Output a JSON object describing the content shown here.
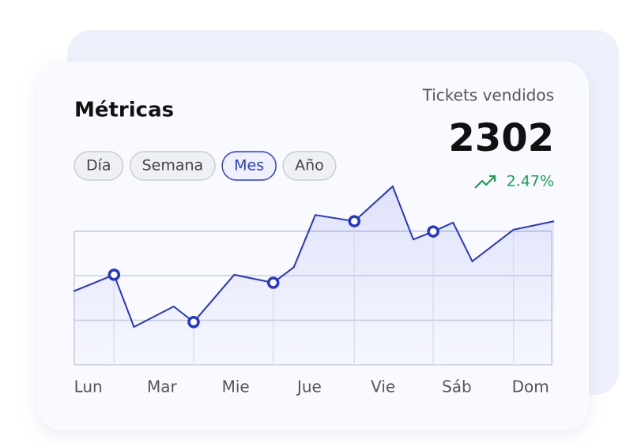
{
  "card": {
    "title": "Métricas",
    "filters": [
      "Día",
      "Semana",
      "Mes",
      "Año"
    ],
    "active_filter": 2,
    "kpi_label": "Tickets vendidos",
    "kpi_value": "2302",
    "kpi_change": "2.47%"
  },
  "chart_data": {
    "type": "line",
    "categories": [
      "Lun",
      "Mar",
      "Mie",
      "Jue",
      "Vie",
      "Sáb",
      "Dom"
    ],
    "x": [
      -0.2,
      0.35,
      0.62,
      1.16,
      1.43,
      1.98,
      2.51,
      2.79,
      3.08,
      3.61,
      4.13,
      4.41,
      4.68,
      4.95,
      5.21,
      5.77,
      6.32
    ],
    "values": [
      1.65,
      2.02,
      0.85,
      1.31,
      0.96,
      2.02,
      1.84,
      2.19,
      3.36,
      3.22,
      4.0,
      2.81,
      2.99,
      3.19,
      2.32,
      3.03,
      3.22
    ],
    "xlim": [
      -0.2,
      6.32
    ],
    "ylim": [
      0,
      4
    ],
    "gridlines": [
      1,
      2,
      3
    ],
    "markers": [
      1,
      4,
      6,
      9,
      12
    ],
    "guides": [
      1,
      4,
      6,
      9,
      12,
      15
    ],
    "color": "#2536c9"
  }
}
